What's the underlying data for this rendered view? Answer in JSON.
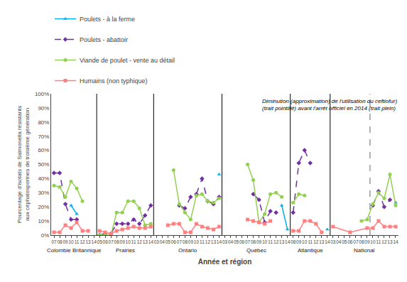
{
  "chart_data": {
    "type": "line",
    "xlabel": "Année et région",
    "ylabel": "Pourcentage d'isolats de Salmonella résistants aux céphalosporines de troisième génération",
    "ylim": [
      0,
      100
    ],
    "yticks": [
      {
        "value": 0,
        "label": "0%"
      },
      {
        "value": 10,
        "label": "10%"
      },
      {
        "value": 20,
        "label": "20%"
      },
      {
        "value": 30,
        "label": "30%"
      },
      {
        "value": 40,
        "label": "40%"
      },
      {
        "value": 50,
        "label": "50%"
      },
      {
        "value": 60,
        "label": "60%"
      },
      {
        "value": 70,
        "label": "70%"
      },
      {
        "value": 80,
        "label": "80%"
      },
      {
        "value": 90,
        "label": "90%"
      },
      {
        "value": 100,
        "label": "100%"
      }
    ],
    "grid": false,
    "legend": "upper left",
    "groups": [
      {
        "label": "Colombie Britannique",
        "categories": [
          "07",
          "08",
          "09",
          "10",
          "11",
          "12",
          "13",
          "14"
        ]
      },
      {
        "label": "Prairies",
        "categories": [
          "05",
          "06",
          "07",
          "08",
          "09",
          "10",
          "11",
          "12",
          "13",
          "14"
        ]
      },
      {
        "label": "Ontario",
        "categories": [
          "03",
          "04",
          "05",
          "06",
          "07",
          "08",
          "09",
          "10",
          "11",
          "12",
          "13",
          "14"
        ]
      },
      {
        "label": "Québec",
        "categories": [
          "03",
          "04",
          "05",
          "06",
          "07",
          "08",
          "09",
          "10",
          "11",
          "12",
          "13",
          "14"
        ]
      },
      {
        "label": "Atlantique",
        "categories": [
          "08",
          "09",
          "10",
          "11",
          "12",
          "13",
          "14"
        ]
      },
      {
        "label": "National",
        "categories": [
          "03",
          "04",
          "05",
          "06",
          "07",
          "08",
          "09",
          "10",
          "11",
          "12",
          "13",
          "14"
        ]
      }
    ],
    "series": [
      {
        "name": "Poulets - à la ferme",
        "color": "#00b0f0",
        "marker": "triangle-up",
        "line_style": "solid",
        "values": [
          [
            null,
            null,
            null,
            21,
            15,
            null,
            null,
            null
          ],
          [
            null,
            null,
            null,
            null,
            null,
            null,
            null,
            null,
            null,
            null
          ],
          [
            null,
            null,
            null,
            null,
            null,
            null,
            null,
            null,
            null,
            null,
            null,
            43
          ],
          [
            null,
            null,
            null,
            null,
            null,
            null,
            null,
            null,
            null,
            null,
            21,
            4
          ],
          [
            null,
            null,
            null,
            null,
            null,
            null,
            4
          ],
          [
            null,
            null,
            null,
            null,
            null,
            null,
            null,
            null,
            null,
            null,
            null,
            23
          ]
        ]
      },
      {
        "name": "Poulets - abattoir",
        "color": "#7030a0",
        "marker": "diamond",
        "line_style": "dashed",
        "values": [
          [
            44,
            44,
            22,
            11,
            11,
            null,
            null,
            null
          ],
          [
            0,
            1,
            1,
            8,
            8,
            8,
            11,
            8,
            14,
            21
          ],
          [
            null,
            null,
            null,
            null,
            21,
            19,
            27,
            29,
            40,
            24,
            22,
            27
          ],
          [
            null,
            null,
            null,
            null,
            null,
            29,
            25,
            9,
            17,
            16,
            null,
            null
          ],
          [
            16,
            51,
            60,
            51,
            null,
            null,
            null
          ],
          [
            null,
            null,
            null,
            null,
            null,
            null,
            null,
            21,
            31,
            20,
            25,
            null
          ]
        ]
      },
      {
        "name": "Viande de poulet - vente au détail",
        "color": "#92d050",
        "marker": "circle",
        "line_style": "solid",
        "values": [
          [
            35,
            34,
            27,
            38,
            33,
            24,
            null,
            null
          ],
          [
            0,
            0,
            0,
            16,
            16,
            24,
            24,
            19,
            7,
            8
          ],
          [
            null,
            null,
            null,
            46,
            22,
            16,
            11,
            28,
            29,
            24,
            23,
            26
          ],
          [
            null,
            null,
            null,
            null,
            50,
            39,
            9,
            15,
            29,
            30,
            27,
            null
          ],
          [
            23,
            29,
            28,
            null,
            null,
            null,
            null
          ],
          [
            null,
            null,
            null,
            null,
            null,
            10,
            11,
            22,
            30,
            26,
            43,
            21
          ]
        ]
      },
      {
        "name": "Humains (non typhique)",
        "color": "#ff8080",
        "marker": "square",
        "line_style": "solid",
        "values": [
          [
            2,
            2,
            7,
            5,
            9,
            3,
            3,
            null
          ],
          [
            3,
            2,
            1,
            3,
            4,
            5,
            6,
            5,
            5,
            6
          ],
          [
            null,
            null,
            7,
            8,
            8,
            2,
            2,
            8,
            6,
            5,
            4,
            6
          ],
          [
            null,
            null,
            null,
            null,
            11,
            10,
            9,
            8,
            10,
            null,
            null,
            null
          ],
          [
            3,
            3,
            10,
            10,
            8,
            2,
            null
          ],
          [
            6,
            null,
            null,
            2,
            null,
            null,
            5,
            5,
            10,
            6,
            6,
            6
          ]
        ]
      }
    ],
    "reference_line": {
      "group": "National",
      "before": "10",
      "line_style": "dashed"
    },
    "annotations": [
      {
        "text": "Diminution (approximation) de l'utilisation du ceftiofur)\n(trait pointillé) avant l'arrêt officiel en 2014 (trait plein)"
      }
    ]
  }
}
